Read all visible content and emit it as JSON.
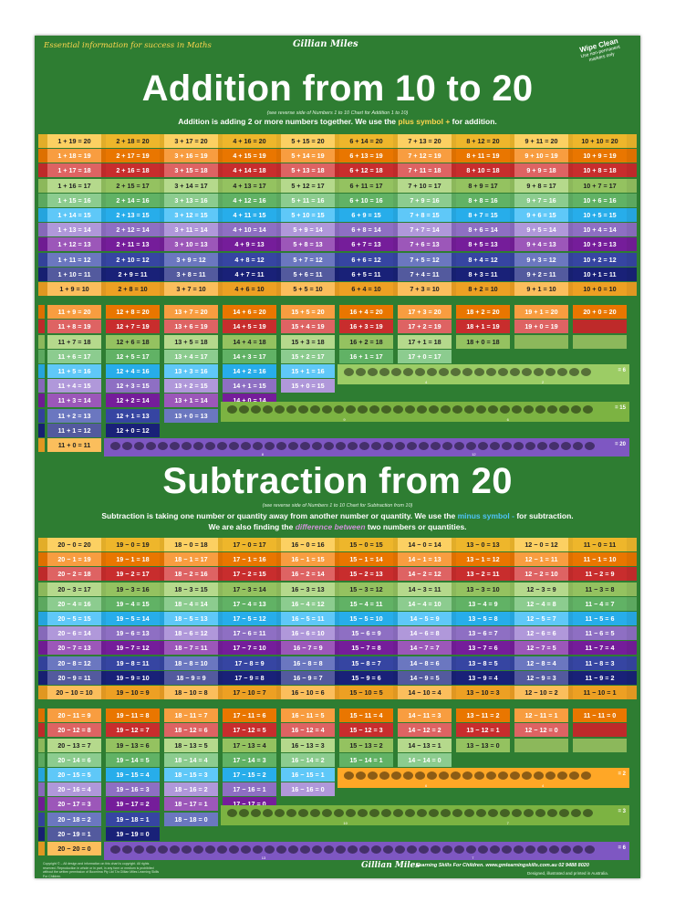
{
  "header": {
    "tagline": "Essential information for success in Maths",
    "brand": "Gillian Miles",
    "wipe_title": "Wipe Clean",
    "wipe_sub": "Use non-permanent markers only"
  },
  "addition": {
    "title": "Addition from 10 to 20",
    "note": "(see reverse side of Numbers 1 to 10 Chart for Addition 1 to 10)",
    "desc_before": "Addition is adding 2 or more numbers together. We use the ",
    "desc_hl": "plus symbol +",
    "desc_after": " for addition.",
    "rows": [
      [
        "1 + 19 = 20",
        "2 + 18 = 20",
        "3 + 17 = 20",
        "4 + 16 = 20",
        "5 + 15 = 20",
        "6 + 14 = 20",
        "7 + 13 = 20",
        "8 + 12 = 20",
        "9 + 11 = 20",
        "10 + 10 = 20"
      ],
      [
        "1 + 18 = 19",
        "2 + 17 = 19",
        "3 + 16 = 19",
        "4 + 15 = 19",
        "5 + 14 = 19",
        "6 + 13 = 19",
        "7 + 12 = 19",
        "8 + 11 = 19",
        "9 + 10 = 19",
        "10 + 9 = 19"
      ],
      [
        "1 + 17 = 18",
        "2 + 16 = 18",
        "3 + 15 = 18",
        "4 + 14 = 18",
        "5 + 13 = 18",
        "6 + 12 = 18",
        "7 + 11 = 18",
        "8 + 10 = 18",
        "9 + 9 = 18",
        "10 + 8 = 18"
      ],
      [
        "1 + 16 = 17",
        "2 + 15 = 17",
        "3 + 14 = 17",
        "4 + 13 = 17",
        "5 + 12 = 17",
        "6 + 11 = 17",
        "7 + 10 = 17",
        "8 + 9 = 17",
        "9 + 8 = 17",
        "10 + 7 = 17"
      ],
      [
        "1 + 15 = 16",
        "2 + 14 = 16",
        "3 + 13 = 16",
        "4 + 12 = 16",
        "5 + 11 = 16",
        "6 + 10 = 16",
        "7 + 9 = 16",
        "8 + 8 = 16",
        "9 + 7 = 16",
        "10 + 6 = 16"
      ],
      [
        "1 + 14 = 15",
        "2 + 13 = 15",
        "3 + 12 = 15",
        "4 + 11 = 15",
        "5 + 10 = 15",
        "6 + 9 = 15",
        "7 + 8 = 15",
        "8 + 7 = 15",
        "9 + 6 = 15",
        "10 + 5 = 15"
      ],
      [
        "1 + 13 = 14",
        "2 + 12 = 14",
        "3 + 11 = 14",
        "4 + 10 = 14",
        "5 + 9 = 14",
        "6 + 8 = 14",
        "7 + 7 = 14",
        "8 + 6 = 14",
        "9 + 5 = 14",
        "10 + 4 = 14"
      ],
      [
        "1 + 12 = 13",
        "2 + 11 = 13",
        "3 + 10 = 13",
        "4 + 9 = 13",
        "5 + 8 = 13",
        "6 + 7 = 13",
        "7 + 6 = 13",
        "8 + 5 = 13",
        "9 + 4 = 13",
        "10 + 3 = 13"
      ],
      [
        "1 + 11 = 12",
        "2 + 10 = 12",
        "3 + 9 = 12",
        "4 + 8 = 12",
        "5 + 7 = 12",
        "6 + 6 = 12",
        "7 + 5 = 12",
        "8 + 4 = 12",
        "9 + 3 = 12",
        "10 + 2 = 12"
      ],
      [
        "1 + 10 = 11",
        "2 + 9 = 11",
        "3 + 8 = 11",
        "4 + 7 = 11",
        "5 + 6 = 11",
        "6 + 5 = 11",
        "7 + 4 = 11",
        "8 + 3 = 11",
        "9 + 2 = 11",
        "10 + 1 = 11"
      ],
      [
        "1 + 9 = 10",
        "2 + 8 = 10",
        "3 + 7 = 10",
        "4 + 6 = 10",
        "5 + 5 = 10",
        "6 + 4 = 10",
        "7 + 3 = 10",
        "8 + 2 = 10",
        "9 + 1 = 10",
        "10 + 0 = 10"
      ]
    ],
    "rows2": [
      [
        "11 + 9 = 20",
        "12 + 8 = 20",
        "13 + 7 = 20",
        "14 + 6 = 20",
        "15 + 5 = 20",
        "16 + 4 = 20",
        "17 + 3 = 20",
        "18 + 2 = 20",
        "19 + 1 = 20",
        "20 + 0 = 20"
      ],
      [
        "11 + 8 = 19",
        "12 + 7 = 19",
        "13 + 6 = 19",
        "14 + 5 = 19",
        "15 + 4 = 19",
        "16 + 3 = 19",
        "17 + 2 = 19",
        "18 + 1 = 19",
        "19 + 0 = 19"
      ],
      [
        "11 + 7 = 18",
        "12 + 6 = 18",
        "13 + 5 = 18",
        "14 + 4 = 18",
        "15 + 3 = 18",
        "16 + 2 = 18",
        "17 + 1 = 18",
        "18 + 0 = 18"
      ],
      [
        "11 + 6 = 17",
        "12 + 5 = 17",
        "13 + 4 = 17",
        "14 + 3 = 17",
        "15 + 2 = 17",
        "16 + 1 = 17",
        "17 + 0 = 17"
      ],
      [
        "11 + 5 = 16",
        "12 + 4 = 16",
        "13 + 3 = 16",
        "14 + 2 = 16",
        "15 + 1 = 16",
        "16 + 0 = 16"
      ],
      [
        "11 + 4 = 15",
        "12 + 3 = 15",
        "13 + 2 = 15",
        "14 + 1 = 15",
        "15 + 0 = 15"
      ],
      [
        "11 + 3 = 14",
        "12 + 2 = 14",
        "13 + 1 = 14",
        "14 + 0 = 14"
      ],
      [
        "11 + 2 = 13",
        "12 + 1 = 13",
        "13 + 0 = 13"
      ],
      [
        "11 + 1 = 12",
        "12 + 0 = 12"
      ],
      [
        "11 + 0 = 11"
      ]
    ],
    "groups": [
      {
        "animal": "crocodile-icon",
        "color": "#9ccc65",
        "count": "= 6",
        "left_count": "4",
        "right_count": "2"
      },
      {
        "animal": "elephant-icon",
        "color": "#7cb342",
        "count": "= 15",
        "left_count": "9",
        "right_count": "6"
      },
      {
        "animal": "bird-icon",
        "color": "#7e57c2",
        "count": "= 20",
        "left_count": "8",
        "right_count": "12"
      }
    ]
  },
  "subtraction": {
    "title": "Subtraction from 20",
    "note": "(see reverse side of Numbers 1 to 10 Chart for Subtraction from 10)",
    "desc1_before": "Subtraction is taking one number or quantity away from another number or quantity.  We use the ",
    "desc1_hl": "minus symbol -",
    "desc1_after": " for subtraction.",
    "desc2_before": "We are also finding the ",
    "desc2_hl": "difference between",
    "desc2_after": " two numbers or quantities.",
    "rows": [
      [
        "20 − 0 = 20",
        "19 − 0 = 19",
        "18 − 0 = 18",
        "17 − 0 = 17",
        "16 − 0 = 16",
        "15 − 0 = 15",
        "14 − 0 = 14",
        "13 − 0 = 13",
        "12 − 0 = 12",
        "11 − 0 = 11"
      ],
      [
        "20 − 1 = 19",
        "19 − 1 = 18",
        "18 − 1 = 17",
        "17 − 1 = 16",
        "16 − 1 = 15",
        "15 − 1 = 14",
        "14 − 1 = 13",
        "13 − 1 = 12",
        "12 − 1 = 11",
        "11 − 1 = 10"
      ],
      [
        "20 − 2 = 18",
        "19 − 2 = 17",
        "18 − 2 = 16",
        "17 − 2 = 15",
        "16 − 2 = 14",
        "15 − 2 = 13",
        "14 − 2 = 12",
        "13 − 2 = 11",
        "12 − 2 = 10",
        "11 − 2 = 9"
      ],
      [
        "20 − 3 = 17",
        "19 − 3 = 16",
        "18 − 3 = 15",
        "17 − 3 = 14",
        "16 − 3 = 13",
        "15 − 3 = 12",
        "14 − 3 = 11",
        "13 − 3 = 10",
        "12 − 3 = 9",
        "11 − 3 = 8"
      ],
      [
        "20 − 4 = 16",
        "19 − 4 = 15",
        "18 − 4 = 14",
        "17 − 4 = 13",
        "16 − 4 = 12",
        "15 − 4 = 11",
        "14 − 4 = 10",
        "13 − 4 = 9",
        "12 − 4 = 8",
        "11 − 4 = 7"
      ],
      [
        "20 − 5 = 15",
        "19 − 5 = 14",
        "18 − 5 = 13",
        "17 − 5 = 12",
        "16 − 5 = 11",
        "15 − 5 = 10",
        "14 − 5 = 9",
        "13 − 5 = 8",
        "12 − 5 = 7",
        "11 − 5 = 6"
      ],
      [
        "20 − 6 = 14",
        "19 − 6 = 13",
        "18 − 6 = 12",
        "17 − 6 = 11",
        "16 − 6 = 10",
        "15 − 6 = 9",
        "14 − 6 = 8",
        "13 − 6 = 7",
        "12 − 6 = 6",
        "11 − 6 = 5"
      ],
      [
        "20 − 7 = 13",
        "19 − 7 = 12",
        "18 − 7 = 11",
        "17 − 7 = 10",
        "16 − 7 = 9",
        "15 − 7 = 8",
        "14 − 7 = 7",
        "13 − 7 = 6",
        "12 − 7 = 5",
        "11 − 7 = 4"
      ],
      [
        "20 − 8 = 12",
        "19 − 8 = 11",
        "18 − 8 = 10",
        "17 − 8 = 9",
        "16 − 8 = 8",
        "15 − 8 = 7",
        "14 − 8 = 6",
        "13 − 8 = 5",
        "12 − 8 = 4",
        "11 − 8 = 3"
      ],
      [
        "20 − 9 = 11",
        "19 − 9 = 10",
        "18 − 9 = 9",
        "17 − 9 = 8",
        "16 − 9 = 7",
        "15 − 9 = 6",
        "14 − 9 = 5",
        "13 − 9 = 4",
        "12 − 9 = 3",
        "11 − 9 = 2"
      ],
      [
        "20 − 10 = 10",
        "19 − 10 = 9",
        "18 − 10 = 8",
        "17 − 10 = 7",
        "16 − 10 = 6",
        "15 − 10 = 5",
        "14 − 10 = 4",
        "13 − 10 = 3",
        "12 − 10 = 2",
        "11 − 10 = 1"
      ]
    ],
    "rows2": [
      [
        "20 − 11 = 9",
        "19 − 11 = 8",
        "18 − 11 = 7",
        "17 − 11 = 6",
        "16 − 11 = 5",
        "15 − 11 = 4",
        "14 − 11 = 3",
        "13 − 11 = 2",
        "12 − 11 = 1",
        "11 − 11 = 0"
      ],
      [
        "20 − 12 = 8",
        "19 − 12 = 7",
        "18 − 12 = 6",
        "17 − 12 = 5",
        "16 − 12 = 4",
        "15 − 12 = 3",
        "14 − 12 = 2",
        "13 − 12 = 1",
        "12 − 12 = 0"
      ],
      [
        "20 − 13 = 7",
        "19 − 13 = 6",
        "18 − 13 = 5",
        "17 − 13 = 4",
        "16 − 13 = 3",
        "15 − 13 = 2",
        "14 − 13 = 1",
        "13 − 13 = 0"
      ],
      [
        "20 − 14 = 6",
        "19 − 14 = 5",
        "18 − 14 = 4",
        "17 − 14 = 3",
        "16 − 14 = 2",
        "15 − 14 = 1",
        "14 − 14 = 0"
      ],
      [
        "20 − 15 = 5",
        "19 − 15 = 4",
        "18 − 15 = 3",
        "17 − 15 = 2",
        "16 − 15 = 1",
        "15 − 15 = 0"
      ],
      [
        "20 − 16 = 4",
        "19 − 16 = 3",
        "18 − 16 = 2",
        "17 − 16 = 1",
        "16 − 16 = 0"
      ],
      [
        "20 − 17 = 3",
        "19 − 17 = 2",
        "18 − 17 = 1",
        "17 − 17 = 0"
      ],
      [
        "20 − 18 = 2",
        "19 − 18 = 1",
        "18 − 18 = 0"
      ],
      [
        "20 − 19 = 1",
        "19 − 19 = 0"
      ],
      [
        "20 − 20 = 0"
      ]
    ],
    "groups": [
      {
        "animal": "hedgehog-icon",
        "color": "#ffa726",
        "count": "= 2",
        "left_count": "6",
        "right_count": "4"
      },
      {
        "animal": "mouse-icon",
        "color": "#7cb342",
        "count": "= 3",
        "left_count": "10",
        "right_count": "7"
      },
      {
        "animal": "frog-icon",
        "color": "#7e57c2",
        "count": "= 6",
        "left_count": "13",
        "right_count": "7"
      }
    ]
  },
  "footer": {
    "copyright": "Copyright © – All design and information on this chart is copyright. All rights reserved. Reproduction in whole or in part, in any form or medium is prohibited without the written permission of Boomima Pty Ltd T/a Gillian Miles Learning Skills For Children.",
    "brand": "Gillian Miles",
    "text": "Learning Skills For Children.  www.gmlearningskills.com.au  02 9488 8020",
    "sub": "Designed, illustrated and printed in Australia."
  },
  "colors": {
    "background": "#2e7d32",
    "row_colors": [
      "#fbc02d",
      "#f57c00",
      "#d32f2f",
      "#9ccc65",
      "#66bb6a",
      "#29b6f6",
      "#9575cd",
      "#7b1fa2",
      "#3949ab",
      "#1a237e",
      "#f9a825"
    ]
  }
}
